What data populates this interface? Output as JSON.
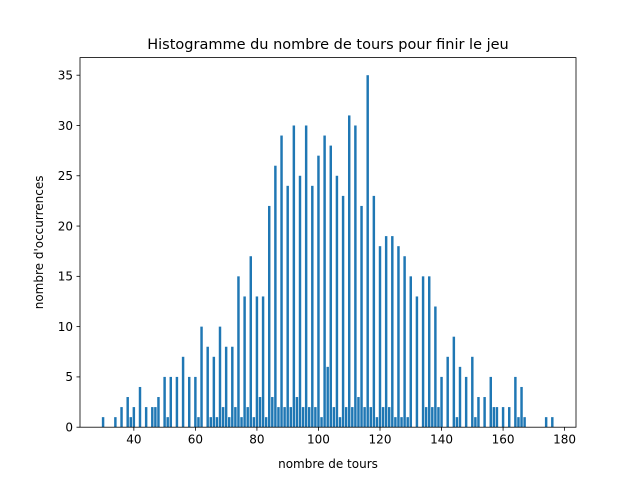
{
  "chart_data": {
    "type": "bar",
    "title": "Histogramme du nombre de tours pour finir le jeu",
    "xlabel": "nombre de tours",
    "ylabel": "nombre d'occurrences",
    "xlim": [
      22.5,
      183.7
    ],
    "ylim": [
      0,
      36.75
    ],
    "xticks": [
      40,
      60,
      80,
      100,
      120,
      140,
      160,
      180
    ],
    "yticks": [
      0,
      5,
      10,
      15,
      20,
      25,
      30,
      35
    ],
    "grid": false,
    "legend": "none",
    "bar_color": "#1f77b4",
    "x": [
      30,
      34,
      36,
      38,
      39,
      40,
      42,
      44,
      46,
      47,
      48,
      50,
      51,
      52,
      54,
      56,
      58,
      60,
      61,
      62,
      64,
      65,
      66,
      67,
      68,
      69,
      70,
      71,
      72,
      73,
      74,
      75,
      76,
      77,
      78,
      79,
      80,
      81,
      82,
      83,
      84,
      85,
      86,
      87,
      88,
      89,
      90,
      91,
      92,
      93,
      94,
      95,
      96,
      97,
      98,
      99,
      100,
      101,
      102,
      103,
      104,
      105,
      106,
      107,
      108,
      109,
      110,
      111,
      112,
      113,
      114,
      115,
      116,
      117,
      118,
      119,
      120,
      121,
      122,
      123,
      124,
      125,
      126,
      127,
      128,
      129,
      130,
      132,
      134,
      135,
      136,
      137,
      138,
      139,
      140,
      142,
      144,
      145,
      146,
      148,
      150,
      151,
      152,
      154,
      156,
      157,
      158,
      160,
      162,
      164,
      165,
      166,
      167,
      174,
      176
    ],
    "values": [
      1,
      1,
      2,
      3,
      1,
      2,
      4,
      2,
      2,
      2,
      3,
      5,
      1,
      5,
      5,
      7,
      5,
      5,
      1,
      10,
      8,
      1,
      7,
      1,
      10,
      2,
      8,
      1,
      8,
      2,
      15,
      1,
      13,
      2,
      17,
      1,
      13,
      3,
      13,
      1,
      22,
      3,
      26,
      2,
      29,
      2,
      24,
      2,
      30,
      3,
      25,
      2,
      30,
      2,
      24,
      2,
      27,
      1,
      29,
      6,
      28,
      2,
      25,
      1,
      23,
      2,
      31,
      2,
      30,
      3,
      22,
      2,
      35,
      2,
      23,
      1,
      18,
      2,
      19,
      2,
      19,
      1,
      18,
      1,
      17,
      1,
      15,
      13,
      15,
      2,
      15,
      2,
      12,
      2,
      5,
      7,
      9,
      1,
      6,
      5,
      7,
      1,
      3,
      3,
      5,
      2,
      2,
      2,
      2,
      5,
      1,
      4,
      1,
      1,
      1
    ]
  }
}
